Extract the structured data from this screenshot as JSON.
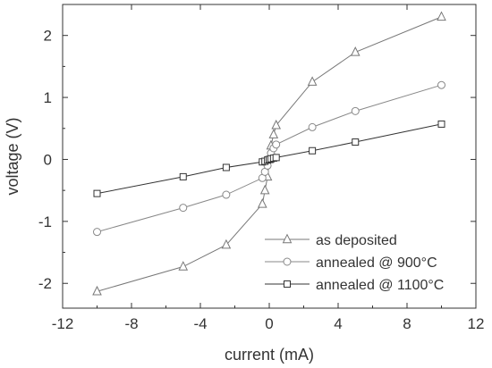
{
  "chart_data": {
    "type": "line",
    "title": "",
    "xlabel": "current (mA)",
    "ylabel": "voltage (V)",
    "xlim": [
      -12,
      12
    ],
    "ylim": [
      -2.4,
      2.5
    ],
    "xticks": [
      -12,
      -8,
      -4,
      0,
      4,
      8,
      12
    ],
    "yticks": [
      -2,
      -1,
      0,
      1,
      2
    ],
    "xtick_labels": [
      "-12",
      "-8",
      "-4",
      "0",
      "4",
      "8",
      "12"
    ],
    "ytick_labels": [
      "-2",
      "-1",
      "0",
      "1",
      "2"
    ],
    "grid": false,
    "legend_position": "bottom-right",
    "series": [
      {
        "name": "as deposited",
        "marker": "triangle",
        "color": "#777777",
        "x": [
          -10,
          -5,
          -2.5,
          -0.4,
          -0.25,
          -0.1,
          0,
          0.1,
          0.25,
          0.4,
          2.5,
          5,
          10
        ],
        "y": [
          -2.13,
          -1.73,
          -1.38,
          -0.72,
          -0.5,
          -0.28,
          0,
          0.22,
          0.4,
          0.55,
          1.25,
          1.73,
          2.3
        ]
      },
      {
        "name": "annealed @ 900°C",
        "marker": "circle",
        "color": "#888888",
        "x": [
          -10,
          -5,
          -2.5,
          -0.4,
          -0.25,
          -0.1,
          0,
          0.1,
          0.25,
          0.4,
          2.5,
          5,
          10
        ],
        "y": [
          -1.17,
          -0.78,
          -0.57,
          -0.3,
          -0.2,
          -0.1,
          0,
          0.1,
          0.18,
          0.24,
          0.52,
          0.78,
          1.2
        ]
      },
      {
        "name": "annealed @ 1100°C",
        "marker": "square",
        "color": "#333333",
        "x": [
          -10,
          -5,
          -2.5,
          -0.4,
          -0.25,
          -0.1,
          0,
          0.1,
          0.25,
          0.4,
          2.5,
          5,
          10
        ],
        "y": [
          -0.55,
          -0.28,
          -0.13,
          -0.04,
          -0.03,
          -0.01,
          0,
          0.01,
          0.02,
          0.03,
          0.14,
          0.28,
          0.57
        ]
      }
    ]
  }
}
